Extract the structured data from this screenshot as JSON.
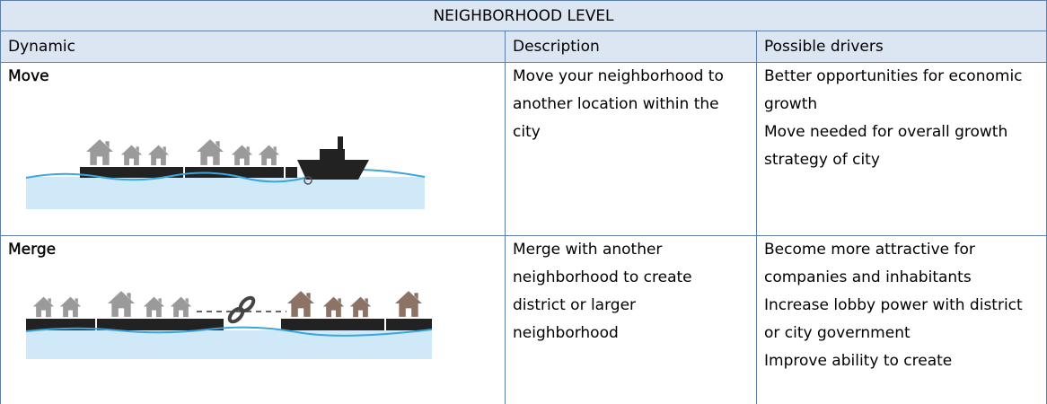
{
  "table": {
    "title": "NEIGHBORHOOD LEVEL",
    "headers": [
      "Dynamic",
      "Description",
      "Possible drivers"
    ],
    "rows": [
      {
        "dynamic": "Move",
        "description": "Move your neighborhood to another location within the city",
        "drivers": [
          "Better opportunities for economic growth",
          "Move needed for overall growth strategy of city"
        ]
      },
      {
        "dynamic": "Merge",
        "description": "Merge with another neighborhood to create district or larger neighborhood",
        "drivers": [
          "Become more attractive for companies and inhabitants",
          "Increase lobby power with district or city government",
          "Improve ability to create"
        ]
      }
    ]
  }
}
